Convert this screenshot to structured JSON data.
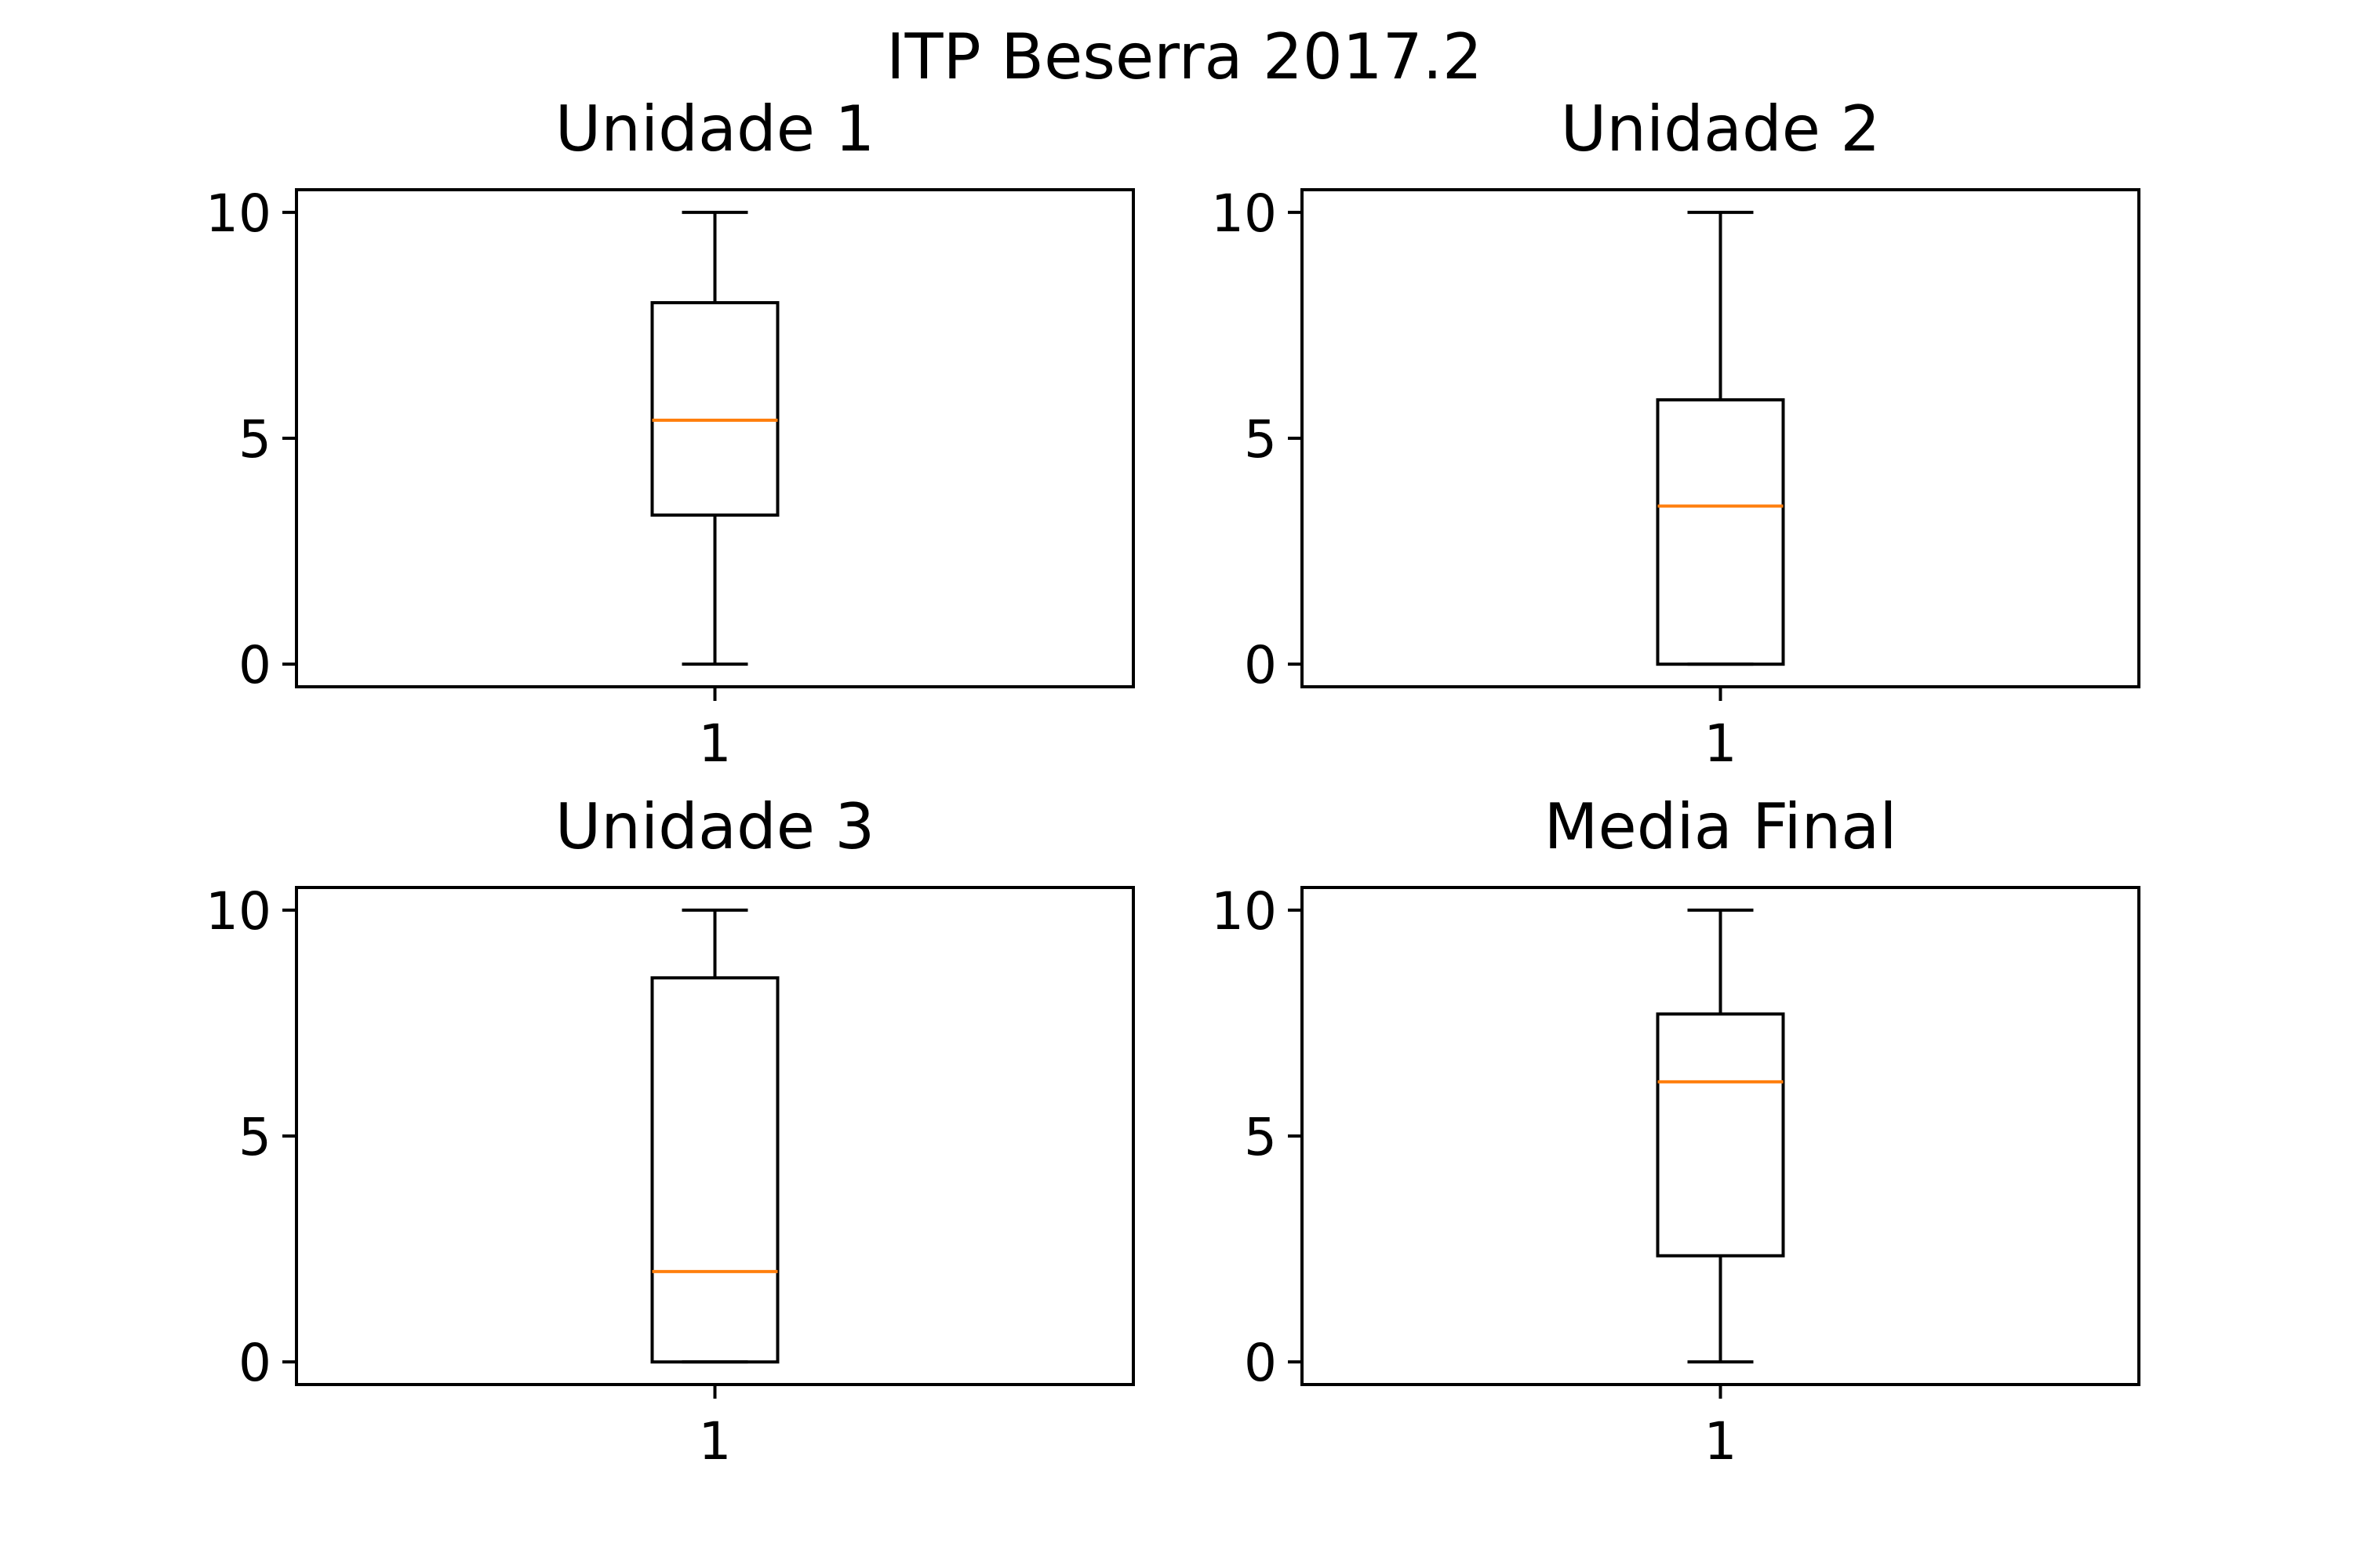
{
  "figure": {
    "title": "ITP Beserra 2017.2",
    "colors": {
      "median": "#ff7f0e",
      "box": "#000000",
      "background": "#ffffff"
    }
  },
  "chart_data": [
    {
      "type": "box",
      "title": "Unidade 1",
      "xlabel": "",
      "ylabel": "",
      "categories": [
        "1"
      ],
      "ylim": [
        -0.5,
        10.5
      ],
      "yticks": [
        0,
        5,
        10
      ],
      "stats": {
        "whisker_low": 0,
        "q1": 3.3,
        "median": 5.4,
        "q3": 8.0,
        "whisker_high": 10
      }
    },
    {
      "type": "box",
      "title": "Unidade 2",
      "xlabel": "",
      "ylabel": "",
      "categories": [
        "1"
      ],
      "ylim": [
        -0.5,
        10.5
      ],
      "yticks": [
        0,
        5,
        10
      ],
      "stats": {
        "whisker_low": 0,
        "q1": 0,
        "median": 3.5,
        "q3": 5.85,
        "whisker_high": 10
      }
    },
    {
      "type": "box",
      "title": "Unidade 3",
      "xlabel": "",
      "ylabel": "",
      "categories": [
        "1"
      ],
      "ylim": [
        -0.5,
        10.5
      ],
      "yticks": [
        0,
        5,
        10
      ],
      "stats": {
        "whisker_low": 0,
        "q1": 0,
        "median": 2.0,
        "q3": 8.5,
        "whisker_high": 10
      }
    },
    {
      "type": "box",
      "title": "Media Final",
      "xlabel": "",
      "ylabel": "",
      "categories": [
        "1"
      ],
      "ylim": [
        -0.5,
        10.5
      ],
      "yticks": [
        0,
        5,
        10
      ],
      "stats": {
        "whisker_low": 0,
        "q1": 2.35,
        "median": 6.2,
        "q3": 7.7,
        "whisker_high": 10
      }
    }
  ]
}
